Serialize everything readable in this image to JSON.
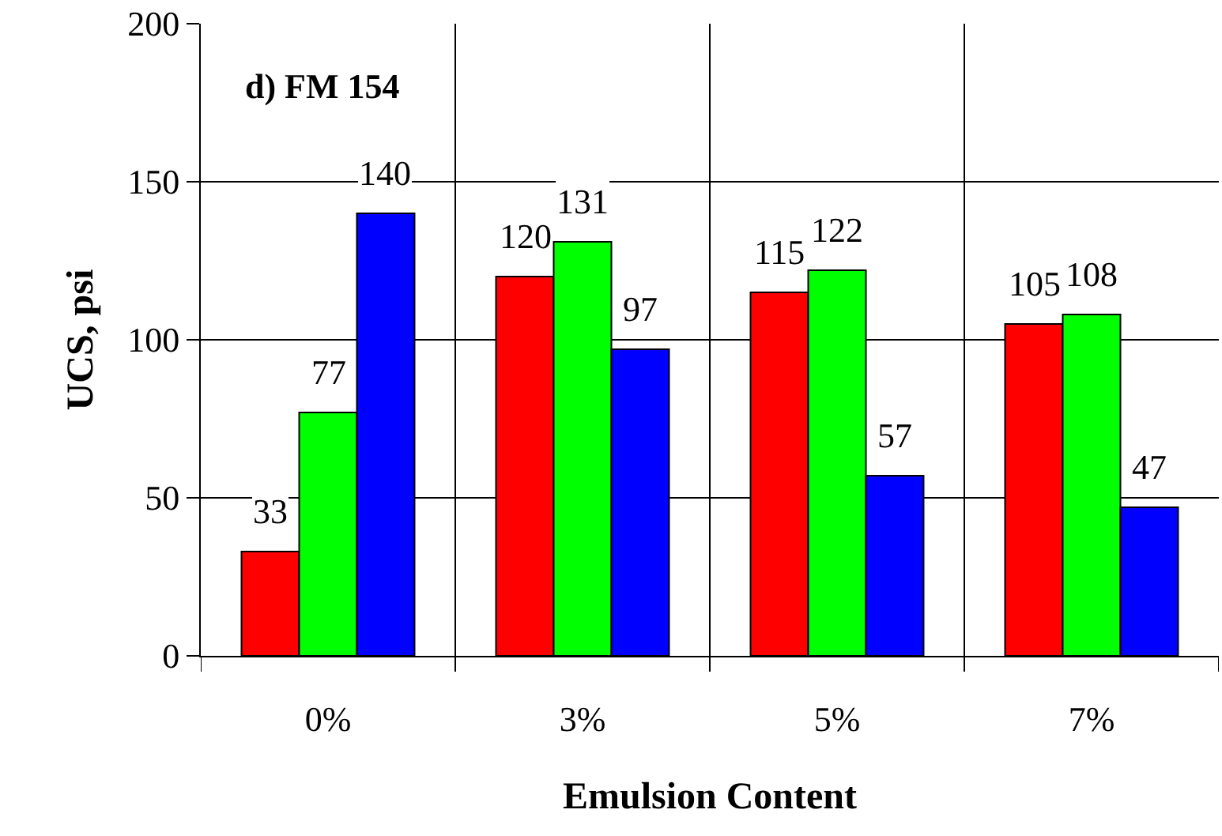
{
  "chart_data": {
    "type": "bar",
    "xlabel": "Emulsion Content",
    "ylabel": "UCS, psi",
    "annotations": [
      "d) FM 154"
    ],
    "categories": [
      "0%",
      "3%",
      "5%",
      "7%"
    ],
    "series": [
      {
        "color": "#ff0000",
        "values": [
          33,
          120,
          115,
          105
        ]
      },
      {
        "color": "#00ff00",
        "values": [
          77,
          131,
          122,
          108
        ]
      },
      {
        "color": "#0000ff",
        "values": [
          140,
          97,
          57,
          47
        ]
      }
    ],
    "ylim": [
      0,
      200
    ],
    "yticks": [
      0,
      50,
      100,
      150,
      200
    ],
    "grid": true,
    "data_labels": true
  }
}
